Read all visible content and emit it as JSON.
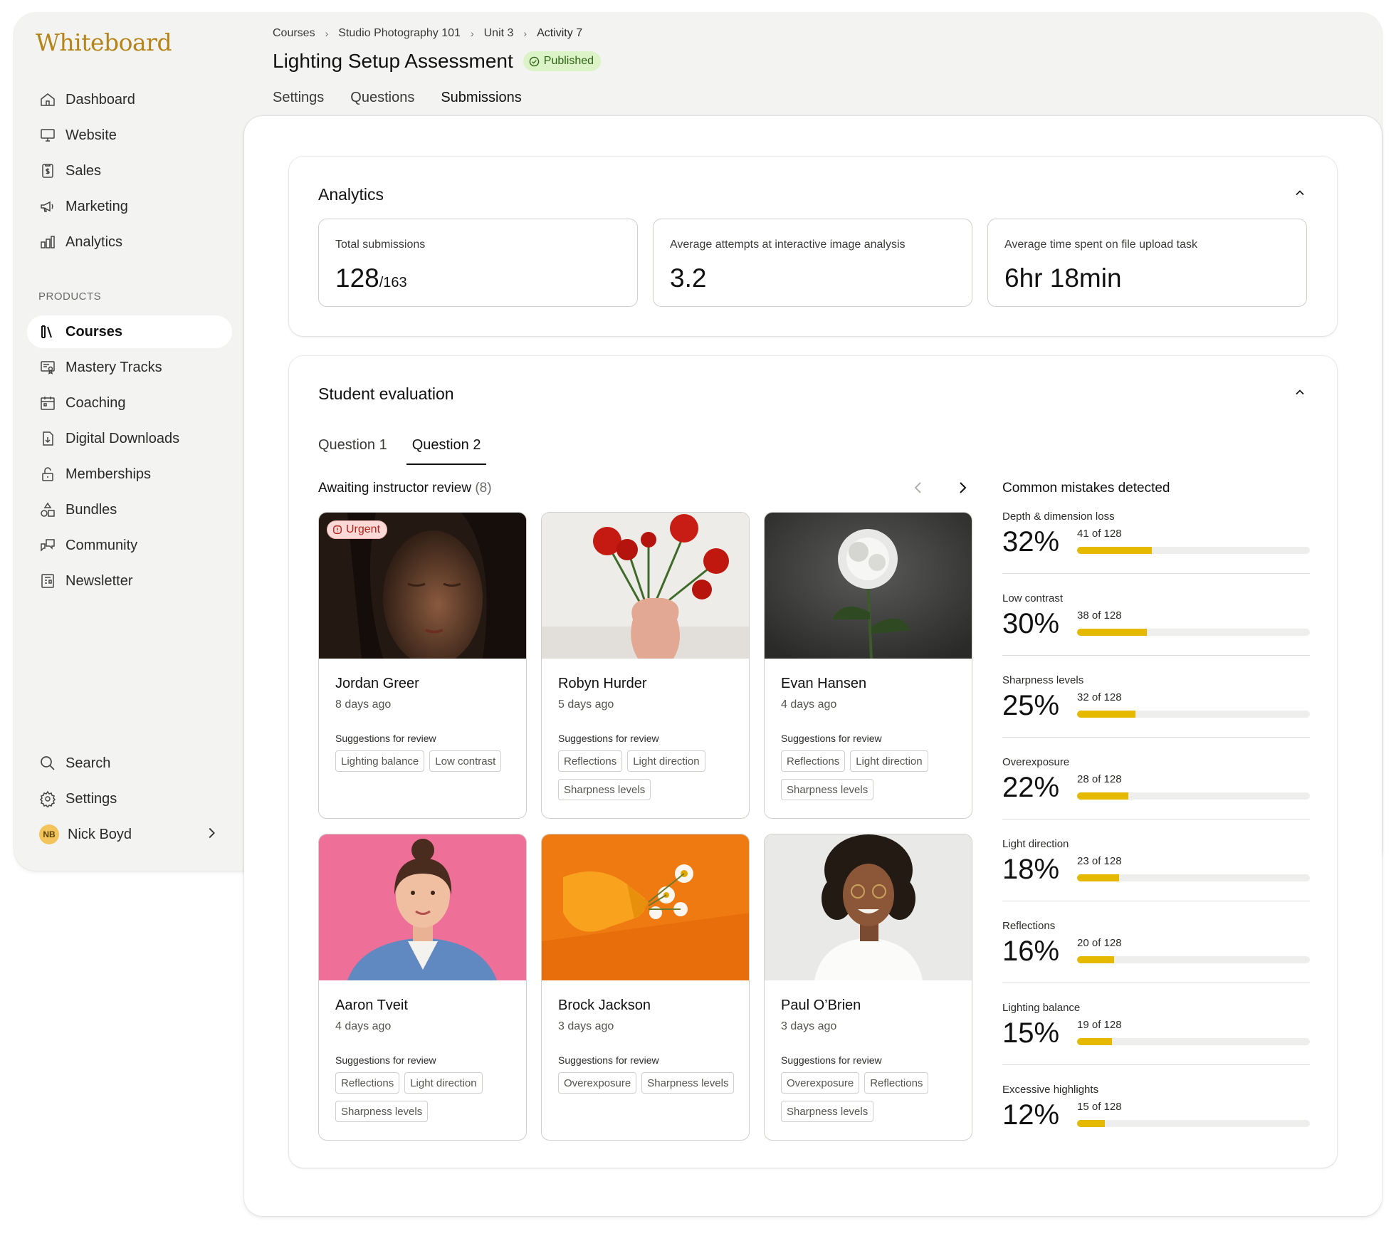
{
  "app": {
    "logo": "Whiteboard"
  },
  "sidebar": {
    "nav": [
      {
        "label": "Dashboard",
        "icon": "home-icon"
      },
      {
        "label": "Website",
        "icon": "monitor-icon"
      },
      {
        "label": "Sales",
        "icon": "receipt-icon"
      },
      {
        "label": "Marketing",
        "icon": "megaphone-icon"
      },
      {
        "label": "Analytics",
        "icon": "bar-chart-icon"
      }
    ],
    "products_heading": "PRODUCTS",
    "products": [
      {
        "label": "Courses",
        "icon": "books-icon",
        "active": true
      },
      {
        "label": "Mastery Tracks",
        "icon": "certificate-icon"
      },
      {
        "label": "Coaching",
        "icon": "calendar-icon"
      },
      {
        "label": "Digital Downloads",
        "icon": "file-download-icon"
      },
      {
        "label": "Memberships",
        "icon": "lock-icon"
      },
      {
        "label": "Bundles",
        "icon": "shapes-icon"
      },
      {
        "label": "Community",
        "icon": "chat-icon"
      },
      {
        "label": "Newsletter",
        "icon": "newsletter-icon"
      }
    ],
    "bottom": [
      {
        "label": "Search",
        "icon": "search-icon"
      },
      {
        "label": "Settings",
        "icon": "gear-icon"
      }
    ],
    "user": {
      "initials": "NB",
      "name": "Nick Boyd"
    }
  },
  "header": {
    "breadcrumb": [
      "Courses",
      "Studio Photography 101",
      "Unit 3",
      "Activity 7"
    ],
    "title": "Lighting Setup Assessment",
    "status": "Published",
    "tabs": [
      "Settings",
      "Questions",
      "Submissions"
    ],
    "active_tab": "Submissions"
  },
  "analytics": {
    "title": "Analytics",
    "stats": [
      {
        "label": "Total submissions",
        "value": "128",
        "sub": "/163"
      },
      {
        "label": "Average attempts at interactive image analysis",
        "value": "3.2",
        "sub": ""
      },
      {
        "label": "Average time spent on file upload task",
        "value": "6hr 18min",
        "sub": ""
      }
    ]
  },
  "evaluation": {
    "title": "Student evaluation",
    "question_tabs": [
      "Question 1",
      "Question 2"
    ],
    "active_question": "Question 2",
    "awaiting_label": "Awaiting instructor review",
    "awaiting_count": "(8)",
    "suggestions_label": "Suggestions for review",
    "urgent_label": "Urgent",
    "submissions": [
      {
        "name": "Jordan Greer",
        "time": "8 days ago",
        "tags": [
          "Lighting balance",
          "Low contrast"
        ],
        "urgent": true,
        "image": "portrait-eyes-closed"
      },
      {
        "name": "Robyn Hurder",
        "time": "5 days ago",
        "tags": [
          "Reflections",
          "Light direction",
          "Sharpness levels"
        ],
        "image": "red-flowers-vase"
      },
      {
        "name": "Evan Hansen",
        "time": "4 days ago",
        "tags": [
          "Reflections",
          "Light direction",
          "Sharpness levels"
        ],
        "image": "white-chrysanthemum"
      },
      {
        "name": "Aaron Tveit",
        "time": "4 days ago",
        "tags": [
          "Reflections",
          "Light direction",
          "Sharpness levels"
        ],
        "image": "portrait-pink-background"
      },
      {
        "name": "Brock Jackson",
        "time": "3 days ago",
        "tags": [
          "Overexposure",
          "Sharpness levels"
        ],
        "image": "orange-vase-daisies"
      },
      {
        "name": "Paul O’Brien",
        "time": "3 days ago",
        "tags": [
          "Overexposure",
          "Reflections",
          "Sharpness levels"
        ],
        "image": "portrait-curly-hair"
      }
    ],
    "mistakes_title": "Common mistakes detected",
    "mistakes": [
      {
        "label": "Depth & dimension loss",
        "pct": "32%",
        "count": "41 of 128",
        "fraction": 0.32
      },
      {
        "label": "Low contrast",
        "pct": "30%",
        "count": "38 of 128",
        "fraction": 0.3
      },
      {
        "label": "Sharpness levels",
        "pct": "25%",
        "count": "32 of 128",
        "fraction": 0.25
      },
      {
        "label": "Overexposure",
        "pct": "22%",
        "count": "28 of 128",
        "fraction": 0.22
      },
      {
        "label": "Light direction",
        "pct": "18%",
        "count": "23 of 128",
        "fraction": 0.18
      },
      {
        "label": "Reflections",
        "pct": "16%",
        "count": "20 of 128",
        "fraction": 0.16
      },
      {
        "label": "Lighting balance",
        "pct": "15%",
        "count": "19 of 128",
        "fraction": 0.15
      },
      {
        "label": "Excessive highlights",
        "pct": "12%",
        "count": "15 of 128",
        "fraction": 0.12
      }
    ]
  },
  "colors": {
    "brand": "#b6851a",
    "progress": "#e5b900",
    "published_bg": "#dcf3c8",
    "urgent_bg": "#fbd9d6"
  }
}
